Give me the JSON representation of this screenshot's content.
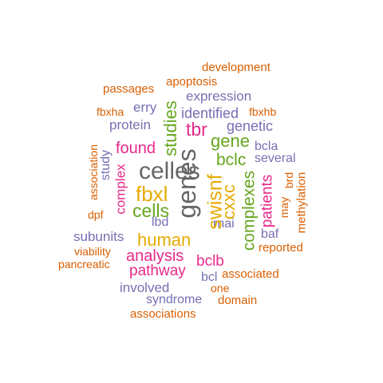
{
  "palette": {
    "orange": "#D95F02",
    "purple": "#7570B3",
    "magenta": "#E7298A",
    "green": "#66A61E",
    "gold": "#E6AB02",
    "gray": "#666666"
  },
  "words": [
    {
      "id": "development",
      "text": "development",
      "color": "orange"
    },
    {
      "id": "passages",
      "text": "passages",
      "color": "orange"
    },
    {
      "id": "apoptosis",
      "text": "apoptosis",
      "color": "orange"
    },
    {
      "id": "expression",
      "text": "expression",
      "color": "purple"
    },
    {
      "id": "fbxha",
      "text": "fbxha",
      "color": "orange"
    },
    {
      "id": "erry",
      "text": "erry",
      "color": "purple"
    },
    {
      "id": "identified",
      "text": "identified",
      "color": "purple"
    },
    {
      "id": "fbxhb",
      "text": "fbxhb",
      "color": "orange"
    },
    {
      "id": "protein",
      "text": "protein",
      "color": "purple"
    },
    {
      "id": "studies",
      "text": "studies",
      "color": "green"
    },
    {
      "id": "tbr",
      "text": "tbr",
      "color": "magenta"
    },
    {
      "id": "genetic",
      "text": "genetic",
      "color": "purple"
    },
    {
      "id": "association",
      "text": "association",
      "color": "orange"
    },
    {
      "id": "study",
      "text": "study",
      "color": "purple"
    },
    {
      "id": "found",
      "text": "found",
      "color": "magenta"
    },
    {
      "id": "gene",
      "text": "gene",
      "color": "green"
    },
    {
      "id": "bcla",
      "text": "bcla",
      "color": "purple"
    },
    {
      "id": "bclc",
      "text": "bclc",
      "color": "green"
    },
    {
      "id": "several",
      "text": "several",
      "color": "purple"
    },
    {
      "id": "complex",
      "text": "complex",
      "color": "magenta"
    },
    {
      "id": "celles",
      "text": "celles",
      "color": "gray"
    },
    {
      "id": "genes",
      "text": "genes",
      "color": "gray"
    },
    {
      "id": "swisnf",
      "text": "swisnf",
      "color": "gold"
    },
    {
      "id": "cxxc",
      "text": "cxxc",
      "color": "gold"
    },
    {
      "id": "complexes",
      "text": "complexes",
      "color": "green"
    },
    {
      "id": "patients",
      "text": "patients",
      "color": "magenta"
    },
    {
      "id": "brd",
      "text": "brd",
      "color": "orange"
    },
    {
      "id": "methylation",
      "text": "methylation",
      "color": "orange"
    },
    {
      "id": "fbxl",
      "text": "fbxl",
      "color": "gold"
    },
    {
      "id": "may",
      "text": "may",
      "color": "orange"
    },
    {
      "id": "cells",
      "text": "cells",
      "color": "green"
    },
    {
      "id": "dpf",
      "text": "dpf",
      "color": "orange"
    },
    {
      "id": "lbd",
      "text": "lbd",
      "color": "purple"
    },
    {
      "id": "rnai",
      "text": "rnai",
      "color": "purple"
    },
    {
      "id": "baf",
      "text": "baf",
      "color": "purple"
    },
    {
      "id": "subunits",
      "text": "subunits",
      "color": "purple"
    },
    {
      "id": "human",
      "text": "human",
      "color": "gold"
    },
    {
      "id": "viability",
      "text": "viability",
      "color": "orange"
    },
    {
      "id": "reported",
      "text": "reported",
      "color": "orange"
    },
    {
      "id": "analysis",
      "text": "analysis",
      "color": "magenta"
    },
    {
      "id": "pancreatic",
      "text": "pancreatic",
      "color": "orange"
    },
    {
      "id": "bclb",
      "text": "bclb",
      "color": "magenta"
    },
    {
      "id": "pathway",
      "text": "pathway",
      "color": "magenta"
    },
    {
      "id": "bcl",
      "text": "bcl",
      "color": "purple"
    },
    {
      "id": "associated",
      "text": "associated",
      "color": "orange"
    },
    {
      "id": "involved",
      "text": "involved",
      "color": "purple"
    },
    {
      "id": "one",
      "text": "one",
      "color": "orange"
    },
    {
      "id": "syndrome",
      "text": "syndrome",
      "color": "purple"
    },
    {
      "id": "domain",
      "text": "domain",
      "color": "orange"
    },
    {
      "id": "associations",
      "text": "associations",
      "color": "orange"
    }
  ]
}
